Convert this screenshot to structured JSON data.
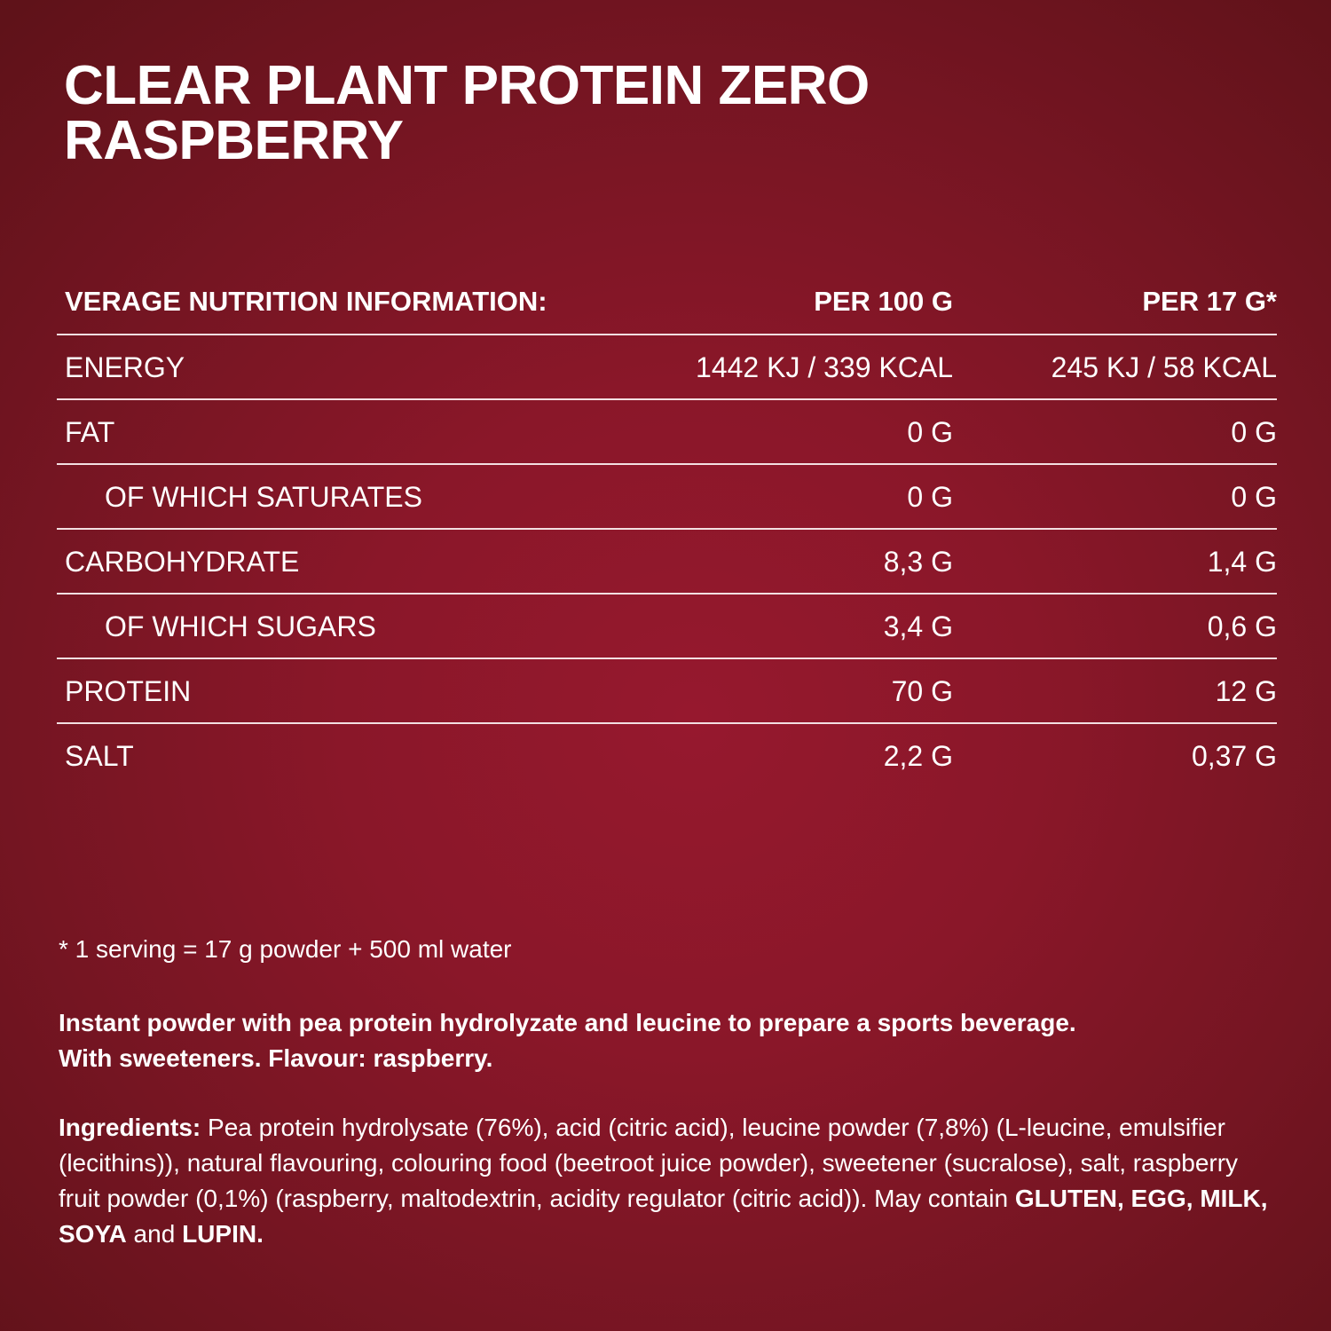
{
  "title": {
    "line1": "CLEAR PLANT PROTEIN ZERO",
    "line2": "RASPBERRY"
  },
  "nutrition": {
    "headers": {
      "label": "VERAGE NUTRITION INFORMATION:",
      "per100": "PER 100 G",
      "perServing": "PER 17 G*"
    },
    "rows": [
      {
        "label": "ENERGY",
        "per100": "1442 KJ / 339 KCAL",
        "perServing": "245 KJ / 58 KCAL"
      },
      {
        "label": "FAT",
        "per100": "0 G",
        "perServing": "0 G"
      },
      {
        "label": "OF WHICH SATURATES",
        "per100": "0 G",
        "perServing": "0 G"
      },
      {
        "label": "CARBOHYDRATE",
        "per100": "8,3 G",
        "perServing": "1,4 G"
      },
      {
        "label": "OF WHICH SUGARS",
        "per100": "3,4 G",
        "perServing": "0,6 G"
      },
      {
        "label": "PROTEIN",
        "per100": "70 G",
        "perServing": "12 G"
      },
      {
        "label": "SALT",
        "per100": "2,2 G",
        "perServing": "0,37 G"
      }
    ]
  },
  "footnote": "* 1 serving = 17 g powder + 500 ml water",
  "description": {
    "line1": "Instant powder with pea protein hydrolyzate and leucine to prepare a sports beverage.",
    "line2": "With sweeteners.  Flavour: raspberry."
  },
  "ingredients": {
    "label": "Ingredients:",
    "text": " Pea protein hydrolysate (76%), acid (citric acid), leucine powder (7,8%) (L-leucine, emulsifier (lecithins)), natural flavouring, colouring food (beetroot juice powder), sweetener (sucralose), salt, raspberry fruit powder (0,1%) (raspberry, maltodextrin, acidity regulator (citric acid)).  May contain ",
    "allergen1": "GLUTEN, EGG, MILK, SOYA",
    "conjunction": " and ",
    "allergen2": "LUPIN."
  },
  "colors": {
    "background": "#8a1729",
    "text": "#ffffff"
  }
}
